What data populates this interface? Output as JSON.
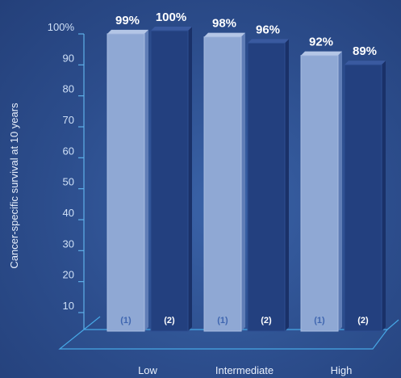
{
  "chart_data": {
    "type": "bar",
    "title": "",
    "xlabel": "",
    "ylabel": "Cancer-specific survival at 10 years",
    "categories": [
      "Low",
      "Intermediate",
      "High"
    ],
    "ylim": [
      0,
      100
    ],
    "yticks": [
      {
        "value": 100,
        "label": "100%"
      },
      {
        "value": 90,
        "label": "90"
      },
      {
        "value": 80,
        "label": "80"
      },
      {
        "value": 70,
        "label": "70"
      },
      {
        "value": 60,
        "label": "60"
      },
      {
        "value": 50,
        "label": "50"
      },
      {
        "value": 40,
        "label": "40"
      },
      {
        "value": 30,
        "label": "30"
      },
      {
        "value": 20,
        "label": "20"
      },
      {
        "value": 10,
        "label": "10"
      }
    ],
    "series": [
      {
        "tag": "(1)",
        "values": [
          99,
          98,
          92
        ],
        "value_labels": [
          "99%",
          "98%",
          "92%"
        ],
        "color": "#8fa8d4",
        "tag_color": "#3f66b0"
      },
      {
        "tag": "(2)",
        "values": [
          100,
          96,
          89
        ],
        "value_labels": [
          "100%",
          "96%",
          "89%"
        ],
        "color": "#23407f",
        "tag_color": "#ffffff"
      }
    ],
    "grid": false
  }
}
